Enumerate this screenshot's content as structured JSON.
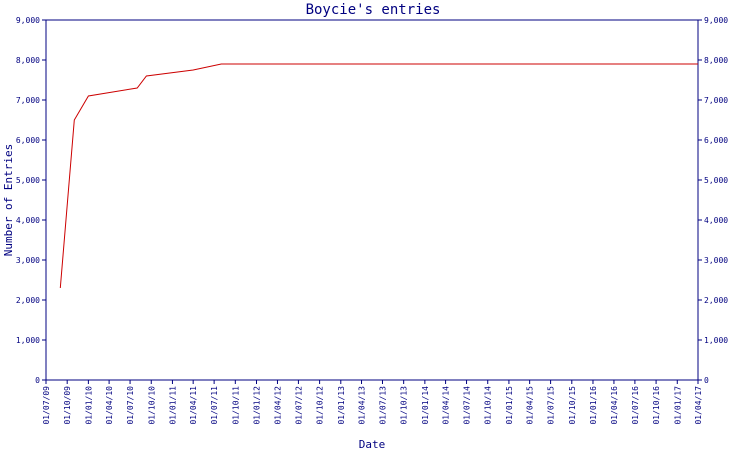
{
  "chart_data": {
    "type": "line",
    "title": "Boycie's entries",
    "xlabel": "Date",
    "ylabel": "Number of Entries",
    "ylim": [
      0,
      9000
    ],
    "y_ticks": [
      "0",
      "1,000",
      "2,000",
      "3,000",
      "4,000",
      "5,000",
      "6,000",
      "7,000",
      "8,000",
      "9,000"
    ],
    "x_ticks": [
      "01/07/09",
      "01/10/09",
      "01/01/10",
      "01/04/10",
      "01/07/10",
      "01/10/10",
      "01/01/11",
      "01/04/11",
      "01/07/11",
      "01/10/11",
      "01/01/12",
      "01/04/12",
      "01/07/12",
      "01/10/12",
      "01/01/13",
      "01/04/13",
      "01/07/13",
      "01/10/13",
      "01/01/14",
      "01/04/14",
      "01/07/14",
      "01/10/14",
      "01/01/15",
      "01/04/15",
      "01/07/15",
      "01/10/15",
      "01/01/16",
      "01/04/16",
      "01/07/16",
      "01/10/16",
      "01/01/17",
      "01/04/17"
    ],
    "right_axis_mirrored": true,
    "grid": false,
    "series": [
      {
        "color": "#cc0000",
        "x": [
          "2009-09-01",
          "2009-11-01",
          "2010-01-01",
          "2010-08-01",
          "2010-09-10",
          "2011-04-01",
          "2011-08-01",
          "2017-04-01"
        ],
        "y": [
          2300,
          6500,
          7100,
          7300,
          7600,
          7750,
          7900,
          7900
        ]
      }
    ]
  }
}
